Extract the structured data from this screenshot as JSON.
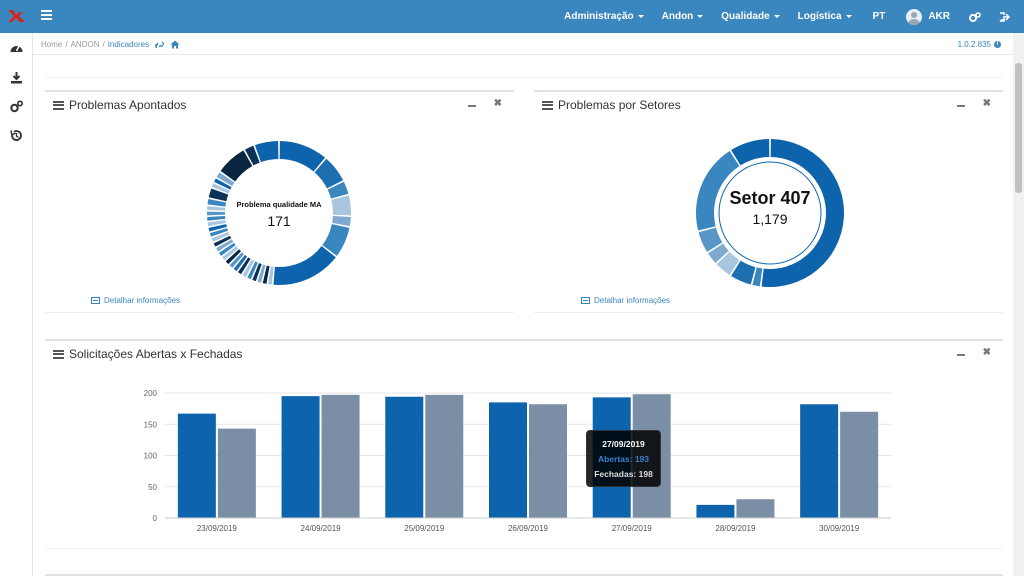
{
  "topbar": {
    "nav": [
      {
        "label": "Administração",
        "caret": true
      },
      {
        "label": "Andon",
        "caret": true
      },
      {
        "label": "Qualidade",
        "caret": true
      },
      {
        "label": "Logística",
        "caret": true
      },
      {
        "label": "PT",
        "caret": false
      }
    ],
    "user": "AKR",
    "colors": {
      "bar": "#3a86bf",
      "logo": "#d9241b"
    }
  },
  "breadcrumb": {
    "home": "Home",
    "andon": "ANDON",
    "current": "Indicadores",
    "version": "1.0.2.835"
  },
  "sidebar": {
    "icons": [
      "dashboard-icon",
      "download-icon",
      "settings-icon",
      "history-icon"
    ]
  },
  "panels": {
    "problemas_apontados": {
      "title": "Problemas Apontados",
      "center_label": "Problema qualidade MA",
      "center_value": "171",
      "detail_link": "Detalhar informações"
    },
    "problemas_setores": {
      "title": "Problemas por Setores",
      "center_label": "Setor 407",
      "center_value": "1,179",
      "detail_link": "Detalhar informações"
    },
    "solicitacoes": {
      "title": "Solicitações Abertas x Fechadas"
    }
  },
  "chart_data": {
    "type": "bar",
    "categories": [
      "23/09/2019",
      "24/09/2019",
      "25/09/2019",
      "26/09/2019",
      "27/09/2019",
      "28/09/2019",
      "30/09/2019"
    ],
    "series": [
      {
        "name": "Abertas",
        "values": [
          167,
          195,
          194,
          185,
          193,
          21,
          182
        ],
        "color": "#0d64ad"
      },
      {
        "name": "Fechadas",
        "values": [
          143,
          197,
          197,
          182,
          198,
          30,
          170
        ],
        "color": "#7a8fa6"
      }
    ],
    "ylim": [
      0,
      200
    ],
    "yticks": [
      "0",
      "50",
      "100",
      "150",
      "200"
    ],
    "grid": true,
    "tooltip": {
      "date": "27/09/2019",
      "abertas": "Abertas: 193",
      "fechadas": "Fechadas: 198"
    }
  }
}
